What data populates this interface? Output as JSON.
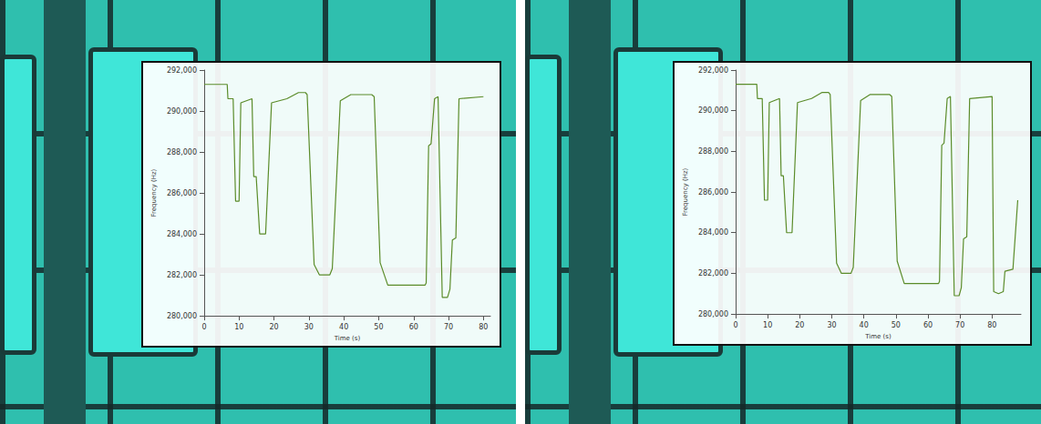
{
  "chart_data": [
    {
      "type": "line",
      "x_label": "Time (s)",
      "y_label": "Frequency (Hz)",
      "color": "#5b8c2a",
      "marker": "none",
      "line_style": "solid",
      "grid": false,
      "x": [
        0,
        6.6,
        6.8,
        8.3,
        9,
        10,
        10.5,
        13.7,
        14.2,
        14.9,
        15.9,
        17.6,
        19.3,
        23.7,
        27,
        29,
        29.5,
        31.5,
        33,
        36,
        36.7,
        39,
        42,
        48,
        48.7,
        50.4,
        52.6,
        63.3,
        63.6,
        64.3,
        65,
        66,
        67,
        68.2,
        69.7,
        70.4,
        71.1,
        72.1,
        73,
        80
      ],
      "values": [
        291300,
        291300,
        290600,
        290600,
        285600,
        285600,
        290400,
        290600,
        286800,
        286800,
        284000,
        284000,
        290400,
        290600,
        290900,
        290900,
        290800,
        282500,
        282000,
        282000,
        282300,
        290500,
        290800,
        290800,
        290700,
        282600,
        281500,
        281500,
        281600,
        288300,
        288400,
        290600,
        290700,
        280900,
        280900,
        281300,
        283700,
        283800,
        290600,
        290700
      ],
      "xlim": [
        0,
        82
      ],
      "xticks": [
        0,
        10,
        20,
        30,
        40,
        50,
        60,
        70,
        80
      ],
      "ylim": [
        280000,
        292000
      ],
      "yticks": [
        280000,
        282000,
        284000,
        286000,
        288000,
        290000,
        292000
      ]
    },
    {
      "type": "line",
      "x_label": "Time (s)",
      "y_label": "Frequency (Hz)",
      "color": "#5b8c2a",
      "marker": "none",
      "line_style": "solid",
      "grid": false,
      "x": [
        0,
        6.6,
        6.8,
        8.3,
        9,
        10,
        10.5,
        13.7,
        14.2,
        14.9,
        15.9,
        17.6,
        19.3,
        23.7,
        27,
        29,
        29.5,
        31.5,
        33,
        36,
        36.7,
        39,
        42,
        48,
        48.7,
        50.4,
        52.6,
        63.3,
        63.6,
        64.3,
        65,
        66,
        67,
        68.2,
        69.7,
        70.4,
        71.1,
        72.1,
        73,
        80,
        80.5,
        82,
        83.5,
        84,
        86.5,
        88
      ],
      "values": [
        291300,
        291300,
        290600,
        290600,
        285600,
        285600,
        290400,
        290600,
        286800,
        286800,
        284000,
        284000,
        290400,
        290600,
        290900,
        290900,
        290800,
        282500,
        282000,
        282000,
        282300,
        290500,
        290800,
        290800,
        290700,
        282600,
        281500,
        281500,
        281600,
        288300,
        288400,
        290600,
        290700,
        280900,
        280900,
        281300,
        283700,
        283800,
        290600,
        290700,
        281100,
        281000,
        281100,
        282100,
        282200,
        285600
      ],
      "xlim": [
        0,
        89
      ],
      "xticks": [
        0,
        10,
        20,
        30,
        40,
        50,
        60,
        70,
        80
      ],
      "ylim": [
        280000,
        292000
      ],
      "yticks": [
        280000,
        282000,
        284000,
        286000,
        288000,
        290000,
        292000
      ]
    }
  ]
}
